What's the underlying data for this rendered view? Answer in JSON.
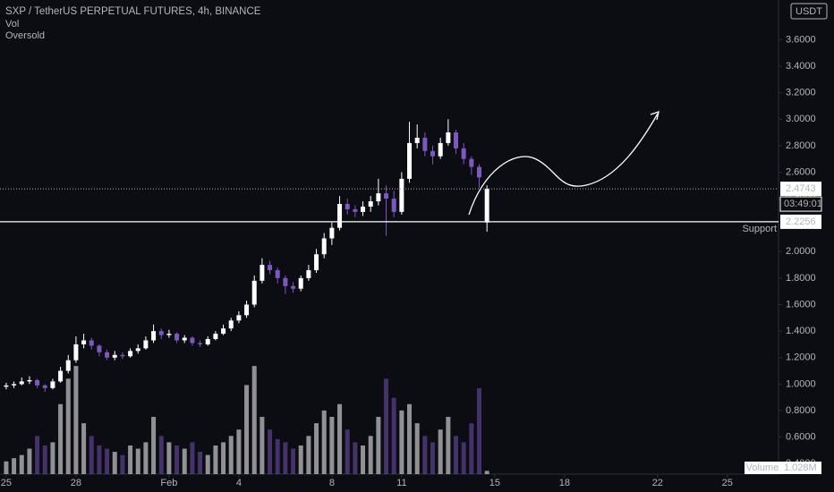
{
  "chart_data": {
    "type": "candlestick",
    "title": "SXP / TetherUS PERPETUAL FUTURES, 4h, BINANCE",
    "indicators": [
      "Vol",
      "Oversold"
    ],
    "currency": "USDT",
    "up_color": "#ffffff",
    "down_color": "#7e57c2",
    "grid": false,
    "open": [
      0.98,
      0.99,
      1.0,
      1.02,
      1.03,
      0.99,
      0.97,
      1.02,
      1.1,
      1.18,
      1.3,
      1.33,
      1.29,
      1.24,
      1.2,
      1.22,
      1.21,
      1.25,
      1.27,
      1.33,
      1.4,
      1.37,
      1.38,
      1.33,
      1.35,
      1.31,
      1.3,
      1.34,
      1.38,
      1.42,
      1.48,
      1.52,
      1.6,
      1.78,
      1.9,
      1.86,
      1.8,
      1.74,
      1.72,
      1.8,
      1.86,
      1.98,
      2.1,
      2.18,
      2.36,
      2.32,
      2.3,
      2.34,
      2.38,
      2.44,
      2.4,
      2.3,
      2.55,
      2.82,
      2.86,
      2.76,
      2.72,
      2.82,
      2.9,
      2.78,
      2.7,
      2.64,
      2.22
    ],
    "high": [
      1.01,
      1.02,
      1.05,
      1.06,
      1.04,
      1.0,
      1.04,
      1.13,
      1.22,
      1.36,
      1.38,
      1.35,
      1.3,
      1.26,
      1.25,
      1.24,
      1.27,
      1.3,
      1.36,
      1.45,
      1.42,
      1.41,
      1.39,
      1.37,
      1.36,
      1.33,
      1.36,
      1.4,
      1.45,
      1.5,
      1.55,
      1.63,
      1.82,
      1.95,
      1.93,
      1.88,
      1.82,
      1.77,
      1.82,
      1.9,
      2.02,
      2.14,
      2.22,
      2.42,
      2.4,
      2.35,
      2.38,
      2.42,
      2.55,
      2.5,
      2.46,
      2.6,
      2.98,
      2.96,
      2.9,
      2.8,
      2.86,
      3.0,
      2.92,
      2.82,
      2.72,
      2.66,
      2.5
    ],
    "low": [
      0.96,
      0.97,
      0.99,
      1.0,
      0.97,
      0.94,
      0.96,
      1.01,
      1.08,
      1.16,
      1.27,
      1.26,
      1.21,
      1.18,
      1.18,
      1.19,
      1.2,
      1.23,
      1.26,
      1.31,
      1.34,
      1.35,
      1.31,
      1.31,
      1.29,
      1.28,
      1.29,
      1.33,
      1.37,
      1.4,
      1.46,
      1.5,
      1.58,
      1.76,
      1.83,
      1.76,
      1.68,
      1.69,
      1.7,
      1.78,
      1.84,
      1.95,
      2.05,
      2.16,
      2.28,
      2.26,
      2.27,
      2.3,
      2.35,
      2.12,
      2.26,
      2.28,
      2.52,
      2.78,
      2.72,
      2.66,
      2.7,
      2.8,
      2.74,
      2.66,
      2.58,
      2.48,
      2.15
    ],
    "close": [
      0.99,
      1.0,
      1.02,
      1.03,
      0.99,
      0.97,
      1.02,
      1.1,
      1.18,
      1.3,
      1.33,
      1.29,
      1.24,
      1.2,
      1.22,
      1.21,
      1.25,
      1.27,
      1.33,
      1.4,
      1.37,
      1.38,
      1.33,
      1.35,
      1.31,
      1.3,
      1.34,
      1.38,
      1.42,
      1.48,
      1.52,
      1.6,
      1.78,
      1.9,
      1.86,
      1.8,
      1.74,
      1.72,
      1.8,
      1.86,
      1.98,
      2.1,
      2.18,
      2.36,
      2.32,
      2.3,
      2.34,
      2.38,
      2.44,
      2.4,
      2.3,
      2.55,
      2.82,
      2.86,
      2.76,
      2.72,
      2.82,
      2.9,
      2.78,
      2.7,
      2.64,
      2.56,
      2.4743
    ],
    "volume": {
      "name": "Volume",
      "unit_label": "1.028M",
      "values": [
        4,
        5,
        6,
        8,
        12,
        9,
        10,
        22,
        30,
        34,
        16,
        12,
        9,
        8,
        7,
        6,
        9,
        8,
        10,
        18,
        12,
        10,
        9,
        8,
        10,
        7,
        6,
        9,
        10,
        12,
        14,
        28,
        34,
        18,
        14,
        11,
        10,
        8,
        9,
        12,
        16,
        20,
        18,
        22,
        14,
        10,
        9,
        12,
        18,
        30,
        24,
        20,
        22,
        16,
        12,
        10,
        14,
        18,
        12,
        10,
        16,
        27,
        1.028
      ]
    },
    "y2lim": [
      0,
      45
    ],
    "xlim": [
      -0.8,
      99.6
    ],
    "xticks": [
      {
        "value": 0,
        "label": "25"
      },
      {
        "value": 9,
        "label": "28"
      },
      {
        "value": 21,
        "label": "Feb"
      },
      {
        "value": 30,
        "label": "4"
      },
      {
        "value": 42,
        "label": "8"
      },
      {
        "value": 51,
        "label": "11"
      },
      {
        "value": 63,
        "label": "15"
      },
      {
        "value": 72,
        "label": "18"
      },
      {
        "value": 84,
        "label": "22"
      },
      {
        "value": 93,
        "label": "25"
      }
    ],
    "ylim": [
      0.3,
      3.9
    ],
    "yticks": [
      {
        "value": 0.4,
        "label": "0.4000"
      },
      {
        "value": 0.6,
        "label": "0.6000"
      },
      {
        "value": 0.8,
        "label": "0.8000"
      },
      {
        "value": 1.0,
        "label": "1.0000"
      },
      {
        "value": 1.2,
        "label": "1.2000"
      },
      {
        "value": 1.4,
        "label": "1.4000"
      },
      {
        "value": 1.6,
        "label": "1.6000"
      },
      {
        "value": 1.8,
        "label": "1.8000"
      },
      {
        "value": 2.0,
        "label": "2.0000"
      },
      {
        "value": 2.2,
        "label": "2.2000"
      },
      {
        "value": 2.4,
        "label": "2.4000"
      },
      {
        "value": 2.6,
        "label": "2.6000"
      },
      {
        "value": 2.8,
        "label": "2.8000"
      },
      {
        "value": 3.0,
        "label": "3.0000"
      },
      {
        "value": 3.2,
        "label": "3.2000"
      },
      {
        "value": 3.4,
        "label": "3.4000"
      },
      {
        "value": 3.6,
        "label": "3.6000"
      }
    ],
    "last_price": 2.4743,
    "countdown": "03:49:01",
    "support": {
      "value": 2.2256,
      "label": "Support"
    }
  }
}
